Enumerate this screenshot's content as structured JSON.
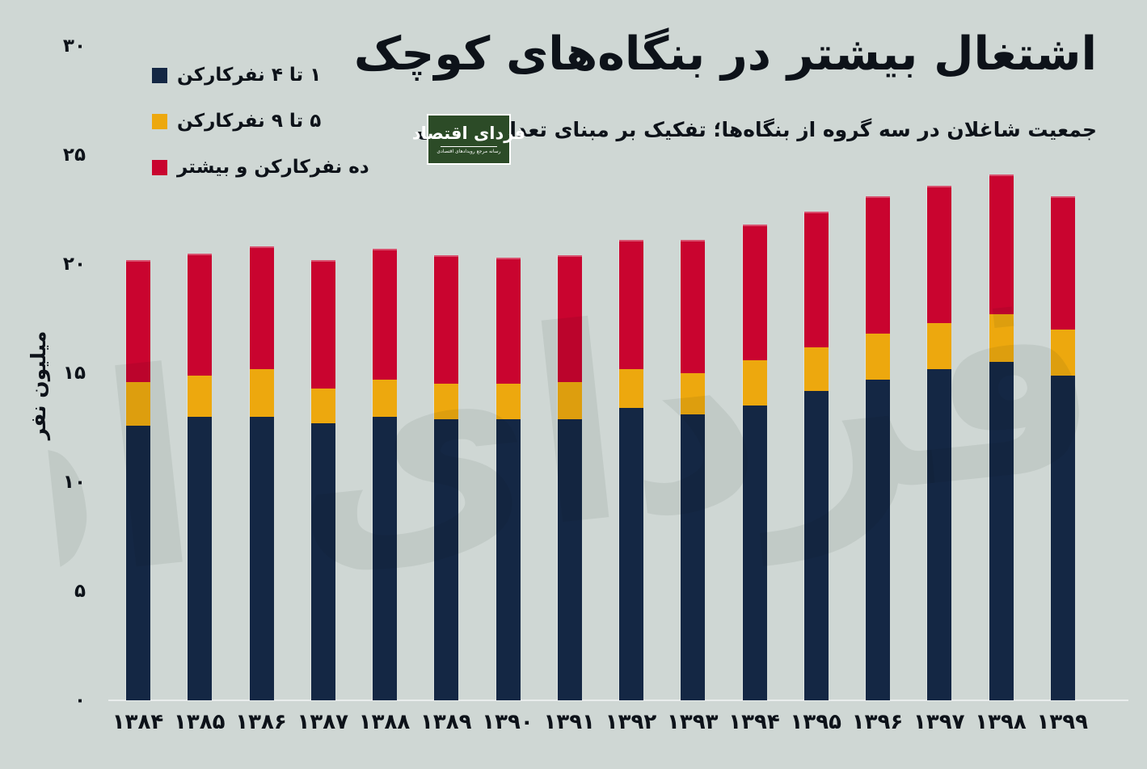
{
  "header": {
    "title": "اشتغال بیشتر در بنگاه‌های کوچک",
    "subtitle": "جمعیت شاغلان در سه گروه از بنگاه‌ها؛ تفکیک بر مبنای تعداد کارکنان",
    "logo": {
      "name": "فردای اقتصاد",
      "tagline": "رسانه مرجع رویدادهای اقتصادی"
    }
  },
  "legend": [
    {
      "label": "۱ تا ۴ نفرکارکن",
      "color": "#142744"
    },
    {
      "label": "۵ تا ۹ نفرکارکن",
      "color": "#eda80e"
    },
    {
      "label": "ده نفرکارکن و بیشتر",
      "color": "#c9042f"
    }
  ],
  "axes": {
    "y_title": "میلیون نفر",
    "y_ticks": [
      {
        "value": 0,
        "label": "۰"
      },
      {
        "value": 5,
        "label": "۵"
      },
      {
        "value": 10,
        "label": "۱۰"
      },
      {
        "value": 15,
        "label": "۱۵"
      },
      {
        "value": 20,
        "label": "۲۰"
      },
      {
        "value": 25,
        "label": "۲۵"
      },
      {
        "value": 30,
        "label": "۳۰"
      }
    ]
  },
  "chart_data": {
    "type": "bar",
    "stacked": true,
    "title": "اشتغال بیشتر در بنگاه‌های کوچک",
    "subtitle": "جمعیت شاغلان در سه گروه از بنگاه‌ها؛ تفکیک بر مبنای تعداد کارکنان",
    "xlabel": "",
    "ylabel": "میلیون نفر",
    "ylim": [
      0,
      30
    ],
    "grid": false,
    "legend_position": "top-right-of-plot",
    "categories": [
      "۱۳۸۴",
      "۱۳۸۵",
      "۱۳۸۶",
      "۱۳۸۷",
      "۱۳۸۸",
      "۱۳۸۹",
      "۱۳۹۰",
      "۱۳۹۱",
      "۱۳۹۲",
      "۱۳۹۳",
      "۱۳۹۴",
      "۱۳۹۵",
      "۱۳۹۶",
      "۱۳۹۷",
      "۱۳۹۸",
      "۱۳۹۹"
    ],
    "categories_latin": [
      1384,
      1385,
      1386,
      1387,
      1388,
      1389,
      1390,
      1391,
      1392,
      1393,
      1394,
      1395,
      1396,
      1397,
      1398,
      1399
    ],
    "series": [
      {
        "name": "۱ تا ۴ نفرکارکن",
        "color": "#142744",
        "values": [
          12.6,
          13.0,
          13.0,
          12.7,
          13.0,
          12.9,
          12.9,
          12.9,
          13.4,
          13.1,
          13.5,
          14.2,
          14.7,
          15.2,
          15.5,
          14.9
        ]
      },
      {
        "name": "۵ تا ۹ نفرکارکن",
        "color": "#eda80e",
        "values": [
          2.0,
          1.9,
          2.2,
          1.6,
          1.7,
          1.6,
          1.6,
          1.7,
          1.8,
          1.9,
          2.1,
          2.0,
          2.1,
          2.1,
          2.2,
          2.1
        ]
      },
      {
        "name": "ده نفرکارکن و بیشتر",
        "color": "#c9042f",
        "values": [
          5.6,
          5.6,
          5.6,
          5.9,
          6.0,
          5.9,
          5.8,
          5.8,
          5.9,
          6.1,
          6.2,
          6.2,
          6.3,
          6.3,
          6.4,
          6.1
        ]
      }
    ],
    "totals": [
      20.2,
      20.5,
      20.8,
      20.2,
      20.7,
      20.4,
      20.3,
      20.4,
      21.1,
      21.1,
      21.8,
      22.4,
      23.1,
      23.6,
      24.1,
      23.1
    ],
    "watermark": "فردای اقتصاد"
  },
  "colors": {
    "background": "#cfd7d4",
    "text": "#0d1219",
    "bar_navy": "#142744",
    "bar_yellow": "#eda80e",
    "bar_red": "#c9042f",
    "logo_green": "#2c4b27",
    "baseline": "#e4e9e7"
  }
}
